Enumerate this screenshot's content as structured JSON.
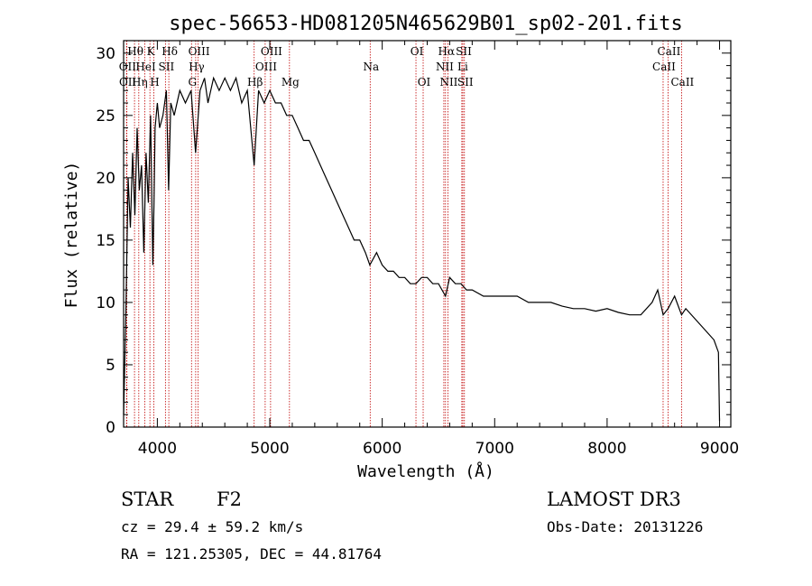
{
  "chart_data": {
    "type": "line",
    "title": "spec-56653-HD081205N465629B01_sp02-201.fits",
    "xlabel": "Wavelength (Å)",
    "ylabel": "Flux (relative)",
    "xlim": [
      3700,
      9100
    ],
    "ylim": [
      0,
      31
    ],
    "xticks": [
      4000,
      5000,
      6000,
      7000,
      8000,
      9000
    ],
    "yticks": [
      0,
      5,
      10,
      15,
      20,
      25,
      30
    ],
    "grid": false,
    "series": [
      {
        "x": [
          3700,
          3720,
          3740,
          3760,
          3780,
          3800,
          3820,
          3840,
          3860,
          3880,
          3900,
          3920,
          3940,
          3960,
          3970,
          3980,
          4000,
          4020,
          4050,
          4080,
          4100,
          4120,
          4150,
          4200,
          4250,
          4300,
          4340,
          4380,
          4420,
          4450,
          4500,
          4550,
          4600,
          4650,
          4700,
          4750,
          4800,
          4861,
          4900,
          4950,
          5000,
          5050,
          5100,
          5150,
          5200,
          5250,
          5300,
          5350,
          5400,
          5450,
          5500,
          5550,
          5600,
          5650,
          5700,
          5750,
          5800,
          5850,
          5890,
          5950,
          6000,
          6050,
          6100,
          6150,
          6200,
          6250,
          6300,
          6350,
          6400,
          6450,
          6500,
          6563,
          6600,
          6650,
          6700,
          6750,
          6800,
          6900,
          7000,
          7100,
          7200,
          7300,
          7400,
          7500,
          7600,
          7700,
          7800,
          7900,
          8000,
          8100,
          8200,
          8300,
          8400,
          8450,
          8498,
          8542,
          8600,
          8662,
          8700,
          8800,
          8850,
          8900,
          8950,
          8990,
          9000
        ],
        "y": [
          1,
          9,
          20,
          16,
          22,
          17,
          24,
          19,
          21,
          14,
          22,
          18,
          25,
          13,
          18,
          24,
          26,
          24,
          25,
          27,
          19,
          26,
          25,
          27,
          26,
          27,
          22,
          27,
          28,
          26,
          28,
          27,
          28,
          27,
          28,
          26,
          27,
          21,
          27,
          26,
          27,
          26,
          26,
          25,
          25,
          24,
          23,
          23,
          22,
          21,
          20,
          19,
          18,
          17,
          16,
          15,
          15,
          14,
          13,
          14,
          13,
          12.5,
          12.5,
          12,
          12,
          11.5,
          11.5,
          12,
          12,
          11.5,
          11.5,
          10.5,
          12,
          11.5,
          11.5,
          11,
          11,
          10.5,
          10.5,
          10.5,
          10.5,
          10,
          10,
          10,
          9.7,
          9.5,
          9.5,
          9.3,
          9.5,
          9.2,
          9,
          9,
          10,
          11,
          9,
          9.5,
          10.5,
          9,
          9.5,
          8.5,
          8,
          7.5,
          7,
          6,
          0.5
        ]
      }
    ],
    "lines": [
      {
        "label": "Hθ",
        "wl": 3797,
        "row": 0
      },
      {
        "label": "OII",
        "wl": 3727,
        "row": 1
      },
      {
        "label": "OII",
        "wl": 3729,
        "row": 2
      },
      {
        "label": "Hη",
        "wl": 3835,
        "row": 2
      },
      {
        "label": "K",
        "wl": 3934,
        "row": 0
      },
      {
        "label": "HeI",
        "wl": 3889,
        "row": 1
      },
      {
        "label": "H",
        "wl": 3969,
        "row": 2
      },
      {
        "label": "Hδ",
        "wl": 4102,
        "row": 0
      },
      {
        "label": "SII",
        "wl": 4072,
        "row": 1
      },
      {
        "label": "OIII",
        "wl": 4363,
        "row": 0
      },
      {
        "label": "Hγ",
        "wl": 4341,
        "row": 1
      },
      {
        "label": "G",
        "wl": 4304,
        "row": 2
      },
      {
        "label": "OIII",
        "wl": 5007,
        "row": 0
      },
      {
        "label": "OIII",
        "wl": 4959,
        "row": 1
      },
      {
        "label": "Hβ",
        "wl": 4861,
        "row": 2
      },
      {
        "label": "Mg",
        "wl": 5175,
        "row": 2
      },
      {
        "label": "Na",
        "wl": 5893,
        "row": 1
      },
      {
        "label": "OI",
        "wl": 6300,
        "row": 0
      },
      {
        "label": "OI",
        "wl": 6364,
        "row": 2
      },
      {
        "label": "Hα",
        "wl": 6563,
        "row": 0
      },
      {
        "label": "SII",
        "wl": 6717,
        "row": 0
      },
      {
        "label": "NII",
        "wl": 6548,
        "row": 1
      },
      {
        "label": "Li",
        "wl": 6708,
        "row": 1
      },
      {
        "label": "NII",
        "wl": 6584,
        "row": 2
      },
      {
        "label": "SII",
        "wl": 6731,
        "row": 2
      },
      {
        "label": "CaII",
        "wl": 8542,
        "row": 0
      },
      {
        "label": "CaII",
        "wl": 8498,
        "row": 1
      },
      {
        "label": "CaII",
        "wl": 8662,
        "row": 2
      }
    ]
  },
  "info": {
    "object_type": "STAR",
    "subclass": "F2",
    "survey": "LAMOST DR3",
    "cz": "cz = 29.4 ± 59.2 km/s",
    "obs_date": "Obs-Date: 20131226",
    "coords": "RA = 121.25305, DEC =  44.81764"
  },
  "colors": {
    "spectrum": "#000000",
    "line_marker": "#c00000"
  }
}
